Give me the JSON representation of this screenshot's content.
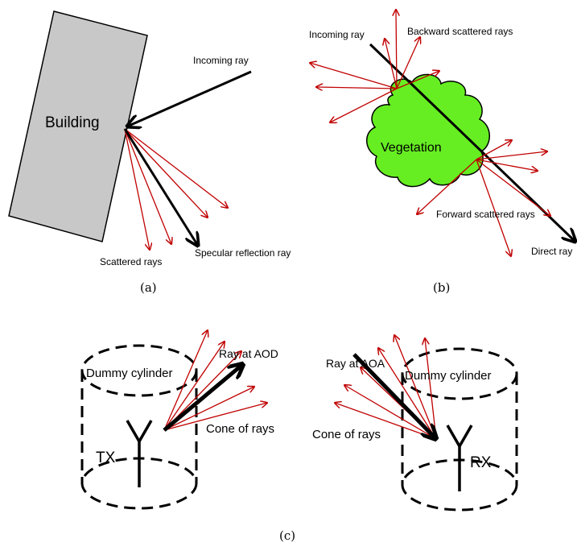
{
  "panel_a": {
    "building_label": "Building",
    "incoming_label": "Incoming ray",
    "scattered_label": "Scattered rays",
    "specular_label": "Specular reflection ray",
    "caption": "(a)"
  },
  "panel_b": {
    "incoming_label": "Incoming ray",
    "backward_label": "Backward scattered rays",
    "vegetation_label": "Vegetation",
    "forward_label": "Forward scattered rays",
    "direct_label": "Direct ray",
    "caption": "(b)"
  },
  "panel_c": {
    "tx_label": "TX",
    "rx_label": "RX",
    "dummy_label_left": "Dummy cylinder",
    "dummy_label_right": "Dummy cylinder",
    "aod_label": "Ray at AOD",
    "aoa_label": "Ray at AOA",
    "cone_label_left": "Cone of rays",
    "cone_label_right": "Cone of rays",
    "caption": "(c)"
  },
  "colors": {
    "red_ray": "#c00000",
    "black_ray": "#000000",
    "building_fill": "#c8c8c8",
    "vegetation_fill": "#66ee22"
  }
}
